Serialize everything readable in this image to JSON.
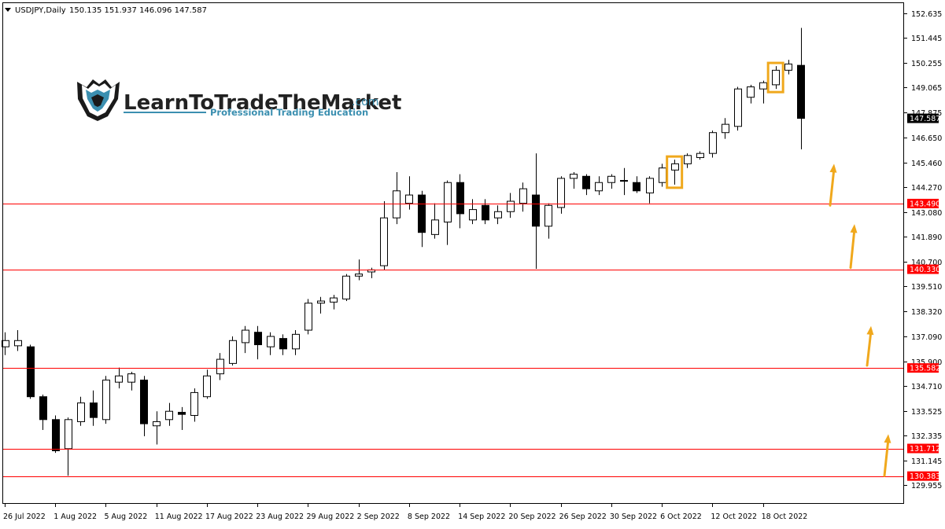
{
  "chart_data": {
    "type": "candlestick",
    "symbol_label": "USDJPY,Daily",
    "ohlc_label": "150.135 151.937 146.096 147.587",
    "ylim": [
      129.955,
      153.2
    ],
    "y_ticks": [
      "152.635",
      "151.445",
      "150.255",
      "149.065",
      "147.875",
      "146.650",
      "145.460",
      "144.270",
      "143.080",
      "141.890",
      "140.700",
      "139.510",
      "138.320",
      "137.090",
      "135.900",
      "134.710",
      "133.525",
      "132.335",
      "131.145",
      "129.955"
    ],
    "current_price": "147.587",
    "levels": [
      "143.490",
      "140.330",
      "135.582",
      "131.712",
      "130.383"
    ],
    "x_labels": [
      {
        "i": 0,
        "label": "26 Jul 2022"
      },
      {
        "i": 4,
        "label": "1 Aug 2022"
      },
      {
        "i": 8,
        "label": "5 Aug 2022"
      },
      {
        "i": 12,
        "label": "11 Aug 2022"
      },
      {
        "i": 16,
        "label": "17 Aug 2022"
      },
      {
        "i": 20,
        "label": "23 Aug 2022"
      },
      {
        "i": 24,
        "label": "29 Aug 2022"
      },
      {
        "i": 28,
        "label": "2 Sep 2022"
      },
      {
        "i": 32,
        "label": "8 Sep 2022"
      },
      {
        "i": 36,
        "label": "14 Sep 2022"
      },
      {
        "i": 40,
        "label": "20 Sep 2022"
      },
      {
        "i": 44,
        "label": "26 Sep 2022"
      },
      {
        "i": 48,
        "label": "30 Sep 2022"
      },
      {
        "i": 52,
        "label": "6 Oct 2022"
      },
      {
        "i": 56,
        "label": "12 Oct 2022"
      },
      {
        "i": 60,
        "label": "18 Oct 2022"
      }
    ],
    "candles": [
      {
        "o": 136.6,
        "h": 137.3,
        "l": 136.2,
        "c": 136.9
      },
      {
        "o": 136.65,
        "h": 137.4,
        "l": 136.4,
        "c": 136.9
      },
      {
        "o": 136.6,
        "h": 136.7,
        "l": 134.1,
        "c": 134.2
      },
      {
        "o": 134.2,
        "h": 134.3,
        "l": 132.6,
        "c": 133.1
      },
      {
        "o": 133.1,
        "h": 133.3,
        "l": 131.5,
        "c": 131.6
      },
      {
        "o": 131.7,
        "h": 133.2,
        "l": 130.4,
        "c": 133.1
      },
      {
        "o": 133.0,
        "h": 134.2,
        "l": 132.8,
        "c": 133.9
      },
      {
        "o": 133.9,
        "h": 134.5,
        "l": 132.8,
        "c": 133.2
      },
      {
        "o": 133.1,
        "h": 135.2,
        "l": 132.9,
        "c": 135.0
      },
      {
        "o": 134.9,
        "h": 135.6,
        "l": 134.6,
        "c": 135.2
      },
      {
        "o": 134.9,
        "h": 135.4,
        "l": 134.5,
        "c": 135.3
      },
      {
        "o": 135.0,
        "h": 135.2,
        "l": 132.3,
        "c": 132.9
      },
      {
        "o": 132.8,
        "h": 133.5,
        "l": 131.9,
        "c": 133.0
      },
      {
        "o": 133.1,
        "h": 133.9,
        "l": 132.8,
        "c": 133.5
      },
      {
        "o": 133.45,
        "h": 133.7,
        "l": 132.6,
        "c": 133.35
      },
      {
        "o": 133.3,
        "h": 134.6,
        "l": 133.0,
        "c": 134.4
      },
      {
        "o": 134.2,
        "h": 135.5,
        "l": 134.1,
        "c": 135.2
      },
      {
        "o": 135.3,
        "h": 136.3,
        "l": 135.0,
        "c": 136.0
      },
      {
        "o": 135.8,
        "h": 137.1,
        "l": 135.7,
        "c": 136.9
      },
      {
        "o": 136.8,
        "h": 137.6,
        "l": 136.3,
        "c": 137.4
      },
      {
        "o": 137.3,
        "h": 137.6,
        "l": 136.0,
        "c": 136.7
      },
      {
        "o": 136.6,
        "h": 137.3,
        "l": 136.2,
        "c": 137.1
      },
      {
        "o": 137.0,
        "h": 137.2,
        "l": 136.2,
        "c": 136.5
      },
      {
        "o": 136.5,
        "h": 137.4,
        "l": 136.2,
        "c": 137.2
      },
      {
        "o": 137.4,
        "h": 138.9,
        "l": 137.2,
        "c": 138.7
      },
      {
        "o": 138.7,
        "h": 139.0,
        "l": 138.2,
        "c": 138.8
      },
      {
        "o": 138.75,
        "h": 139.1,
        "l": 138.4,
        "c": 138.95
      },
      {
        "o": 138.9,
        "h": 140.1,
        "l": 138.8,
        "c": 140.0
      },
      {
        "o": 140.0,
        "h": 140.8,
        "l": 139.8,
        "c": 140.1
      },
      {
        "o": 140.2,
        "h": 140.4,
        "l": 139.9,
        "c": 140.3
      },
      {
        "o": 140.5,
        "h": 143.6,
        "l": 140.3,
        "c": 142.8
      },
      {
        "o": 142.8,
        "h": 145.0,
        "l": 142.5,
        "c": 144.1
      },
      {
        "o": 143.5,
        "h": 144.8,
        "l": 143.2,
        "c": 143.9
      },
      {
        "o": 143.9,
        "h": 144.1,
        "l": 141.4,
        "c": 142.1
      },
      {
        "o": 142.0,
        "h": 143.5,
        "l": 141.8,
        "c": 142.7
      },
      {
        "o": 142.6,
        "h": 144.6,
        "l": 141.5,
        "c": 144.5
      },
      {
        "o": 144.5,
        "h": 144.9,
        "l": 142.3,
        "c": 143.0
      },
      {
        "o": 142.7,
        "h": 143.7,
        "l": 142.5,
        "c": 143.2
      },
      {
        "o": 143.4,
        "h": 143.7,
        "l": 142.5,
        "c": 142.7
      },
      {
        "o": 142.8,
        "h": 143.4,
        "l": 142.5,
        "c": 143.1
      },
      {
        "o": 143.1,
        "h": 144.0,
        "l": 142.8,
        "c": 143.6
      },
      {
        "o": 143.5,
        "h": 144.5,
        "l": 143.1,
        "c": 144.2
      },
      {
        "o": 143.9,
        "h": 145.9,
        "l": 140.35,
        "c": 142.4
      },
      {
        "o": 142.4,
        "h": 143.5,
        "l": 141.8,
        "c": 143.4
      },
      {
        "o": 143.3,
        "h": 144.8,
        "l": 143.0,
        "c": 144.7
      },
      {
        "o": 144.7,
        "h": 145.0,
        "l": 144.2,
        "c": 144.9
      },
      {
        "o": 144.8,
        "h": 144.9,
        "l": 143.9,
        "c": 144.2
      },
      {
        "o": 144.1,
        "h": 144.8,
        "l": 143.9,
        "c": 144.5
      },
      {
        "o": 144.5,
        "h": 144.9,
        "l": 144.2,
        "c": 144.8
      },
      {
        "o": 144.6,
        "h": 145.2,
        "l": 143.9,
        "c": 144.6
      },
      {
        "o": 144.5,
        "h": 144.8,
        "l": 144.0,
        "c": 144.1
      },
      {
        "o": 144.0,
        "h": 144.8,
        "l": 143.5,
        "c": 144.7
      },
      {
        "o": 144.5,
        "h": 145.4,
        "l": 144.3,
        "c": 145.2
      },
      {
        "o": 145.1,
        "h": 145.6,
        "l": 144.4,
        "c": 145.4
      },
      {
        "o": 145.4,
        "h": 145.9,
        "l": 145.2,
        "c": 145.8
      },
      {
        "o": 145.7,
        "h": 146.0,
        "l": 145.6,
        "c": 145.9
      },
      {
        "o": 145.9,
        "h": 147.0,
        "l": 145.7,
        "c": 146.9
      },
      {
        "o": 146.9,
        "h": 147.6,
        "l": 146.6,
        "c": 147.3
      },
      {
        "o": 147.2,
        "h": 149.1,
        "l": 147.0,
        "c": 149.0
      },
      {
        "o": 148.6,
        "h": 149.2,
        "l": 148.3,
        "c": 149.1
      },
      {
        "o": 149.0,
        "h": 149.4,
        "l": 148.3,
        "c": 149.3
      },
      {
        "o": 149.2,
        "h": 150.1,
        "l": 149.0,
        "c": 149.9
      },
      {
        "o": 149.9,
        "h": 150.4,
        "l": 149.7,
        "c": 150.2
      },
      {
        "o": 150.135,
        "h": 151.937,
        "l": 146.096,
        "c": 147.587
      }
    ],
    "highlighted_candles": [
      53,
      61
    ],
    "arrows": [
      {
        "x_from": 1055,
        "x_to": 1060,
        "y_from": 143.4,
        "y_to": 145.4
      },
      {
        "x_from": 1081,
        "x_to": 1086,
        "y_from": 140.4,
        "y_to": 142.5
      },
      {
        "x_from": 1102,
        "x_to": 1107,
        "y_from": 135.7,
        "y_to": 137.6
      },
      {
        "x_from": 1124,
        "x_to": 1129,
        "y_from": 130.4,
        "y_to": 132.4
      }
    ],
    "colors": {
      "level": "#ff0000",
      "highlight": "#f0a81c",
      "arrow": "#f0a81c",
      "candle": "#000000",
      "background": "#ffffff"
    },
    "grid": false
  },
  "logo": {
    "brand_main": "LearnToTradeTheMarket",
    "brand_suffix": ".com",
    "tagline": "Professional Trading Education"
  }
}
